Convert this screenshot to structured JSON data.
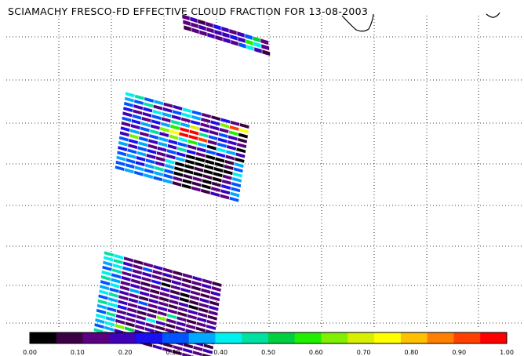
{
  "title": "SCIAMACHY FRESCO-FD EFFECTIVE CLOUD FRACTION FOR 13-08-2003",
  "colorbar": {
    "ticks": [
      "0.00",
      "0.10",
      "0.20",
      "0.30",
      "0.40",
      "0.50",
      "0.60",
      "0.70",
      "0.80",
      "0.90",
      "1.00"
    ],
    "colors": [
      "#000000",
      "#3d0047",
      "#5a0080",
      "#3f00b8",
      "#1a10f0",
      "#0055ff",
      "#00a8ff",
      "#00f0f0",
      "#00e0a0",
      "#00d040",
      "#20f000",
      "#80f000",
      "#d8f000",
      "#ffff00",
      "#ffc000",
      "#ff8000",
      "#ff4000",
      "#ff0000"
    ]
  },
  "swaths": [
    {
      "name": "swath-top",
      "rows": 3,
      "cols": 11,
      "values": [
        [
          0.15,
          0.2,
          0.1,
          0.15,
          0.25,
          0.2,
          0.15,
          0.2,
          0.3,
          0.5,
          0.15
        ],
        [
          0.15,
          0.15,
          0.2,
          0.15,
          0.2,
          0.2,
          0.25,
          0.2,
          0.6,
          0.4,
          0.15
        ],
        [
          0.1,
          0.15,
          0.15,
          0.2,
          0.15,
          0.2,
          0.15,
          0.3,
          0.4,
          0.2,
          0.1
        ]
      ]
    },
    {
      "name": "swath-middle",
      "rows": 16,
      "cols": 13,
      "values": [
        [
          0.4,
          0.45,
          0.3,
          0.35,
          0.15,
          0.2,
          0.4,
          0.3,
          0.15,
          0.1,
          0.25,
          0.15,
          0.1
        ],
        [
          0.35,
          0.3,
          0.45,
          0.15,
          0.2,
          0.3,
          0.4,
          0.35,
          0.15,
          0.25,
          0.65,
          0.9,
          0.75
        ],
        [
          0.3,
          0.2,
          0.25,
          0.4,
          0.35,
          0.2,
          0.15,
          0.25,
          0.15,
          0.2,
          0.15,
          0.6,
          0.0
        ],
        [
          0.25,
          0.15,
          0.2,
          0.3,
          0.15,
          0.45,
          0.35,
          0.7,
          0.2,
          0.15,
          0.3,
          0.2,
          0.1
        ],
        [
          0.2,
          0.3,
          0.15,
          0.25,
          0.35,
          0.6,
          0.95,
          1.0,
          0.45,
          0.3,
          0.25,
          0.2,
          0.15
        ],
        [
          0.3,
          0.25,
          0.35,
          0.2,
          0.65,
          0.75,
          1.0,
          0.95,
          0.9,
          0.15,
          0.3,
          0.2,
          0.05
        ],
        [
          0.15,
          0.2,
          0.3,
          0.45,
          0.2,
          0.65,
          0.4,
          0.6,
          0.35,
          0.0,
          0.4,
          0.35,
          0.2
        ],
        [
          0.25,
          0.35,
          0.15,
          0.3,
          0.35,
          0.25,
          0.3,
          0.15,
          0.2,
          0.3,
          0.25,
          0.15,
          0.05
        ],
        [
          0.2,
          0.65,
          0.3,
          0.2,
          0.35,
          0.2,
          0.45,
          0.25,
          0.15,
          0.05,
          0.0,
          0.1,
          0.35
        ],
        [
          0.3,
          0.25,
          0.35,
          0.15,
          0.2,
          0.3,
          0.25,
          0.0,
          0.05,
          0.0,
          0.0,
          0.1,
          0.3
        ],
        [
          0.35,
          0.2,
          0.3,
          0.25,
          0.15,
          0.2,
          0.35,
          0.05,
          0.0,
          0.0,
          0.0,
          0.05,
          0.4
        ],
        [
          0.25,
          0.3,
          0.35,
          0.2,
          0.15,
          0.4,
          0.0,
          0.0,
          0.1,
          0.0,
          0.0,
          0.15,
          0.35
        ],
        [
          0.3,
          0.35,
          0.25,
          0.3,
          0.2,
          0.35,
          0.0,
          0.0,
          0.05,
          0.1,
          0.0,
          0.15,
          0.3
        ],
        [
          0.35,
          0.3,
          0.25,
          0.35,
          0.45,
          0.3,
          0.05,
          0.1,
          0.15,
          0.05,
          0.1,
          0.25,
          0.3
        ],
        [
          0.3,
          0.3,
          0.35,
          0.3,
          0.35,
          0.3,
          0.15,
          0.05,
          0.1,
          0.05,
          0.15,
          0.2,
          0.35
        ],
        [
          0.3,
          0.35,
          0.3,
          0.35,
          0.3,
          0.35,
          0.1,
          0.0,
          0.15,
          0.1,
          0.2,
          0.15,
          0.3
        ]
      ]
    },
    {
      "name": "swath-bottom",
      "rows": 17,
      "cols": 12,
      "values": [
        [
          0.45,
          0.4,
          0.15,
          0.1,
          0.15,
          0.2,
          0.15,
          0.1,
          0.15,
          0.2,
          0.15,
          0.1
        ],
        [
          0.4,
          0.45,
          0.2,
          0.15,
          0.3,
          0.15,
          0.2,
          0.15,
          0.1,
          0.15,
          0.2,
          0.15
        ],
        [
          0.35,
          0.4,
          0.3,
          0.15,
          0.2,
          0.15,
          0.1,
          0.2,
          0.15,
          0.1,
          0.15,
          0.2
        ],
        [
          0.3,
          0.45,
          0.15,
          0.2,
          0.15,
          0.25,
          0.0,
          0.15,
          0.2,
          0.15,
          0.1,
          0.15
        ],
        [
          0.4,
          0.3,
          0.2,
          0.15,
          0.1,
          0.15,
          0.2,
          0.1,
          0.05,
          0.15,
          0.2,
          0.1
        ],
        [
          0.45,
          0.35,
          0.15,
          0.2,
          0.15,
          0.1,
          0.15,
          0.2,
          0.0,
          0.1,
          0.15,
          0.2
        ],
        [
          0.3,
          0.4,
          0.15,
          0.35,
          0.2,
          0.15,
          0.1,
          0.15,
          0.2,
          0.05,
          0.1,
          0.15
        ],
        [
          0.35,
          0.3,
          0.2,
          0.15,
          0.1,
          0.2,
          0.15,
          0.1,
          0.15,
          0.2,
          0.15,
          0.1
        ],
        [
          0.4,
          0.45,
          0.15,
          0.2,
          0.3,
          0.15,
          0.2,
          0.15,
          0.1,
          0.15,
          0.2,
          0.15
        ],
        [
          0.3,
          0.35,
          0.2,
          0.15,
          0.2,
          0.1,
          0.15,
          0.45,
          0.15,
          0.1,
          0.15,
          0.2
        ],
        [
          0.45,
          0.4,
          0.25,
          0.15,
          0.1,
          0.15,
          0.65,
          0.15,
          0.2,
          0.15,
          0.1,
          0.15
        ],
        [
          0.35,
          0.3,
          0.15,
          0.2,
          0.15,
          0.4,
          0.2,
          0.1,
          0.15,
          0.2,
          0.15,
          0.1
        ],
        [
          0.3,
          0.45,
          0.2,
          0.15,
          0.2,
          0.15,
          0.1,
          0.15,
          0.2,
          0.15,
          0.1,
          0.15
        ],
        [
          0.4,
          0.35,
          0.15,
          0.1,
          0.15,
          0.2,
          0.15,
          0.2,
          0.1,
          0.15,
          0.2,
          0.1
        ],
        [
          0.35,
          0.4,
          0.65,
          0.5,
          0.2,
          0.15,
          0.2,
          0.15,
          0.2,
          0.1,
          0.15,
          0.2
        ],
        [
          0.3,
          0.35,
          0.2,
          0.15,
          0.1,
          0.2,
          0.15,
          0.1,
          0.15,
          0.2,
          0.15,
          0.1
        ],
        [
          0.45,
          0.4,
          0.15,
          0.2,
          0.15,
          0.1,
          0.2,
          0.15,
          0.1,
          0.15,
          0.1,
          0.15
        ]
      ]
    }
  ]
}
